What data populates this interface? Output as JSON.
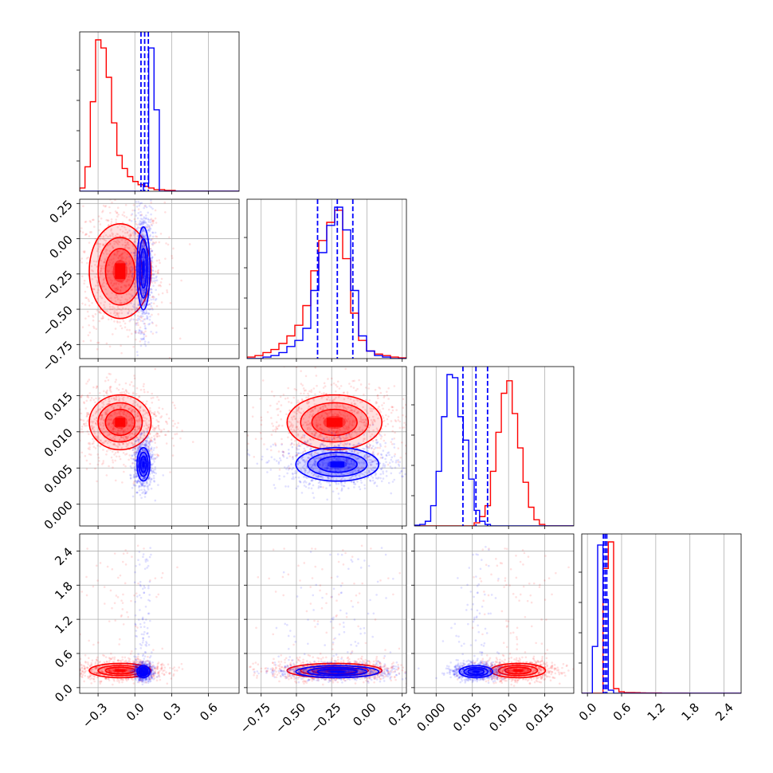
{
  "colors": {
    "red": "#ff0000",
    "blue": "#0000ff",
    "grid": "#b0b0b0"
  },
  "chart_data": {
    "type": "corner",
    "grid": true,
    "parameters": [
      {
        "range": [
          -0.45,
          0.85
        ],
        "ticks": [
          -0.3,
          0.0,
          0.3,
          0.6
        ],
        "tick_labels": [
          "−0.3",
          "0.0",
          "0.3",
          "0.6"
        ]
      },
      {
        "range": [
          -0.85,
          0.28
        ],
        "ticks": [
          -0.75,
          -0.5,
          -0.25,
          0.0,
          0.25
        ],
        "tick_labels": [
          "−0.75",
          "−0.50",
          "−0.25",
          "0.00",
          "0.25"
        ]
      },
      {
        "range": [
          -0.003,
          0.019
        ],
        "ticks": [
          0.0,
          0.005,
          0.01,
          0.015
        ],
        "tick_labels": [
          "0.000",
          "0.005",
          "0.010",
          "0.015"
        ]
      },
      {
        "range": [
          -0.1,
          2.7
        ],
        "ticks": [
          0.0,
          0.6,
          1.2,
          1.8,
          2.4
        ],
        "tick_labels": [
          "0.0",
          "0.6",
          "1.2",
          "1.8",
          "2.4"
        ]
      }
    ],
    "series": [
      {
        "color": "red",
        "marginals": [
          {
            "bin_start": -0.45,
            "bin_width": 0.0433,
            "counts": [
              0.02,
              0.15,
              0.55,
              0.93,
              0.88,
              0.7,
              0.42,
              0.22,
              0.14,
              0.09,
              0.06,
              0.04,
              0.03,
              0.02,
              0.01,
              0.01,
              0.005,
              0.005,
              0,
              0,
              0,
              0,
              0,
              0,
              0,
              0,
              0,
              0,
              0,
              0
            ]
          },
          {
            "bin_start": -0.85,
            "bin_width": 0.0565,
            "counts": [
              0.01,
              0.02,
              0.04,
              0.06,
              0.1,
              0.15,
              0.22,
              0.35,
              0.58,
              0.78,
              0.9,
              0.98,
              0.66,
              0.3,
              0.12,
              0.05,
              0.03,
              0.02,
              0.01,
              0.005
            ]
          },
          {
            "bin_start": -0.003,
            "bin_width": 0.00075,
            "counts": [
              0,
              0,
              0,
              0,
              0,
              0,
              0,
              0,
              0,
              0,
              0,
              0.02,
              0.06,
              0.13,
              0.35,
              0.6,
              0.85,
              0.93,
              0.72,
              0.5,
              0.28,
              0.12,
              0.04,
              0.01,
              0,
              0,
              0,
              0,
              0,
              0
            ]
          },
          {
            "bin_start": -0.1,
            "bin_width": 0.0933,
            "counts": [
              0,
              0,
              0,
              0,
              0.8,
              0.97,
              0.03,
              0.01,
              0.005,
              0.005,
              0.004,
              0.003,
              0.002,
              0.002,
              0.002,
              0.001,
              0.001,
              0.001,
              0.001,
              0.001,
              0,
              0,
              0,
              0,
              0,
              0,
              0,
              0,
              0,
              0
            ]
          }
        ],
        "quantiles": [],
        "mean": [
          -0.12,
          -0.23,
          0.0113,
          0.3
        ],
        "std": [
          0.12,
          0.16,
          0.0018,
          0.06
        ]
      },
      {
        "color": "blue",
        "marginals": [
          {
            "bin_start": -0.45,
            "bin_width": 0.0433,
            "counts": [
              0,
              0,
              0,
              0,
              0,
              0,
              0,
              0,
              0,
              0,
              0,
              0,
              0.05,
              0.88,
              0.5,
              0,
              0,
              0,
              0,
              0,
              0,
              0,
              0,
              0,
              0,
              0,
              0,
              0,
              0,
              0
            ]
          },
          {
            "bin_start": -0.85,
            "bin_width": 0.0565,
            "counts": [
              0,
              0,
              0.01,
              0.02,
              0.04,
              0.08,
              0.12,
              0.2,
              0.45,
              0.7,
              0.88,
              1.0,
              0.85,
              0.45,
              0.15,
              0.05,
              0.02,
              0.01,
              0,
              0
            ]
          },
          {
            "bin_start": -0.003,
            "bin_width": 0.00075,
            "counts": [
              0.005,
              0.01,
              0.03,
              0.13,
              0.35,
              0.7,
              0.97,
              0.95,
              0.7,
              0.55,
              0.3,
              0.1,
              0.03,
              0.01,
              0,
              0,
              0,
              0,
              0,
              0,
              0,
              0,
              0,
              0,
              0,
              0,
              0,
              0,
              0,
              0
            ]
          },
          {
            "bin_start": -0.1,
            "bin_width": 0.0933,
            "counts": [
              0,
              0,
              0.3,
              0.95,
              0.6,
              0.02,
              0,
              0,
              0,
              0,
              0,
              0,
              0,
              0,
              0,
              0,
              0,
              0,
              0,
              0,
              0,
              0,
              0,
              0,
              0,
              0,
              0,
              0,
              0,
              0
            ]
          }
        ],
        "quantiles": [
          [
            0.05,
            0.08,
            0.11
          ],
          [
            -0.35,
            -0.21,
            -0.1
          ],
          [
            0.0037,
            0.0055,
            0.0071
          ],
          [
            0.28,
            0.31,
            0.34
          ]
        ],
        "mean": [
          0.07,
          -0.21,
          0.0055,
          0.28
        ],
        "std": [
          0.025,
          0.14,
          0.0011,
          0.05
        ]
      }
    ]
  }
}
